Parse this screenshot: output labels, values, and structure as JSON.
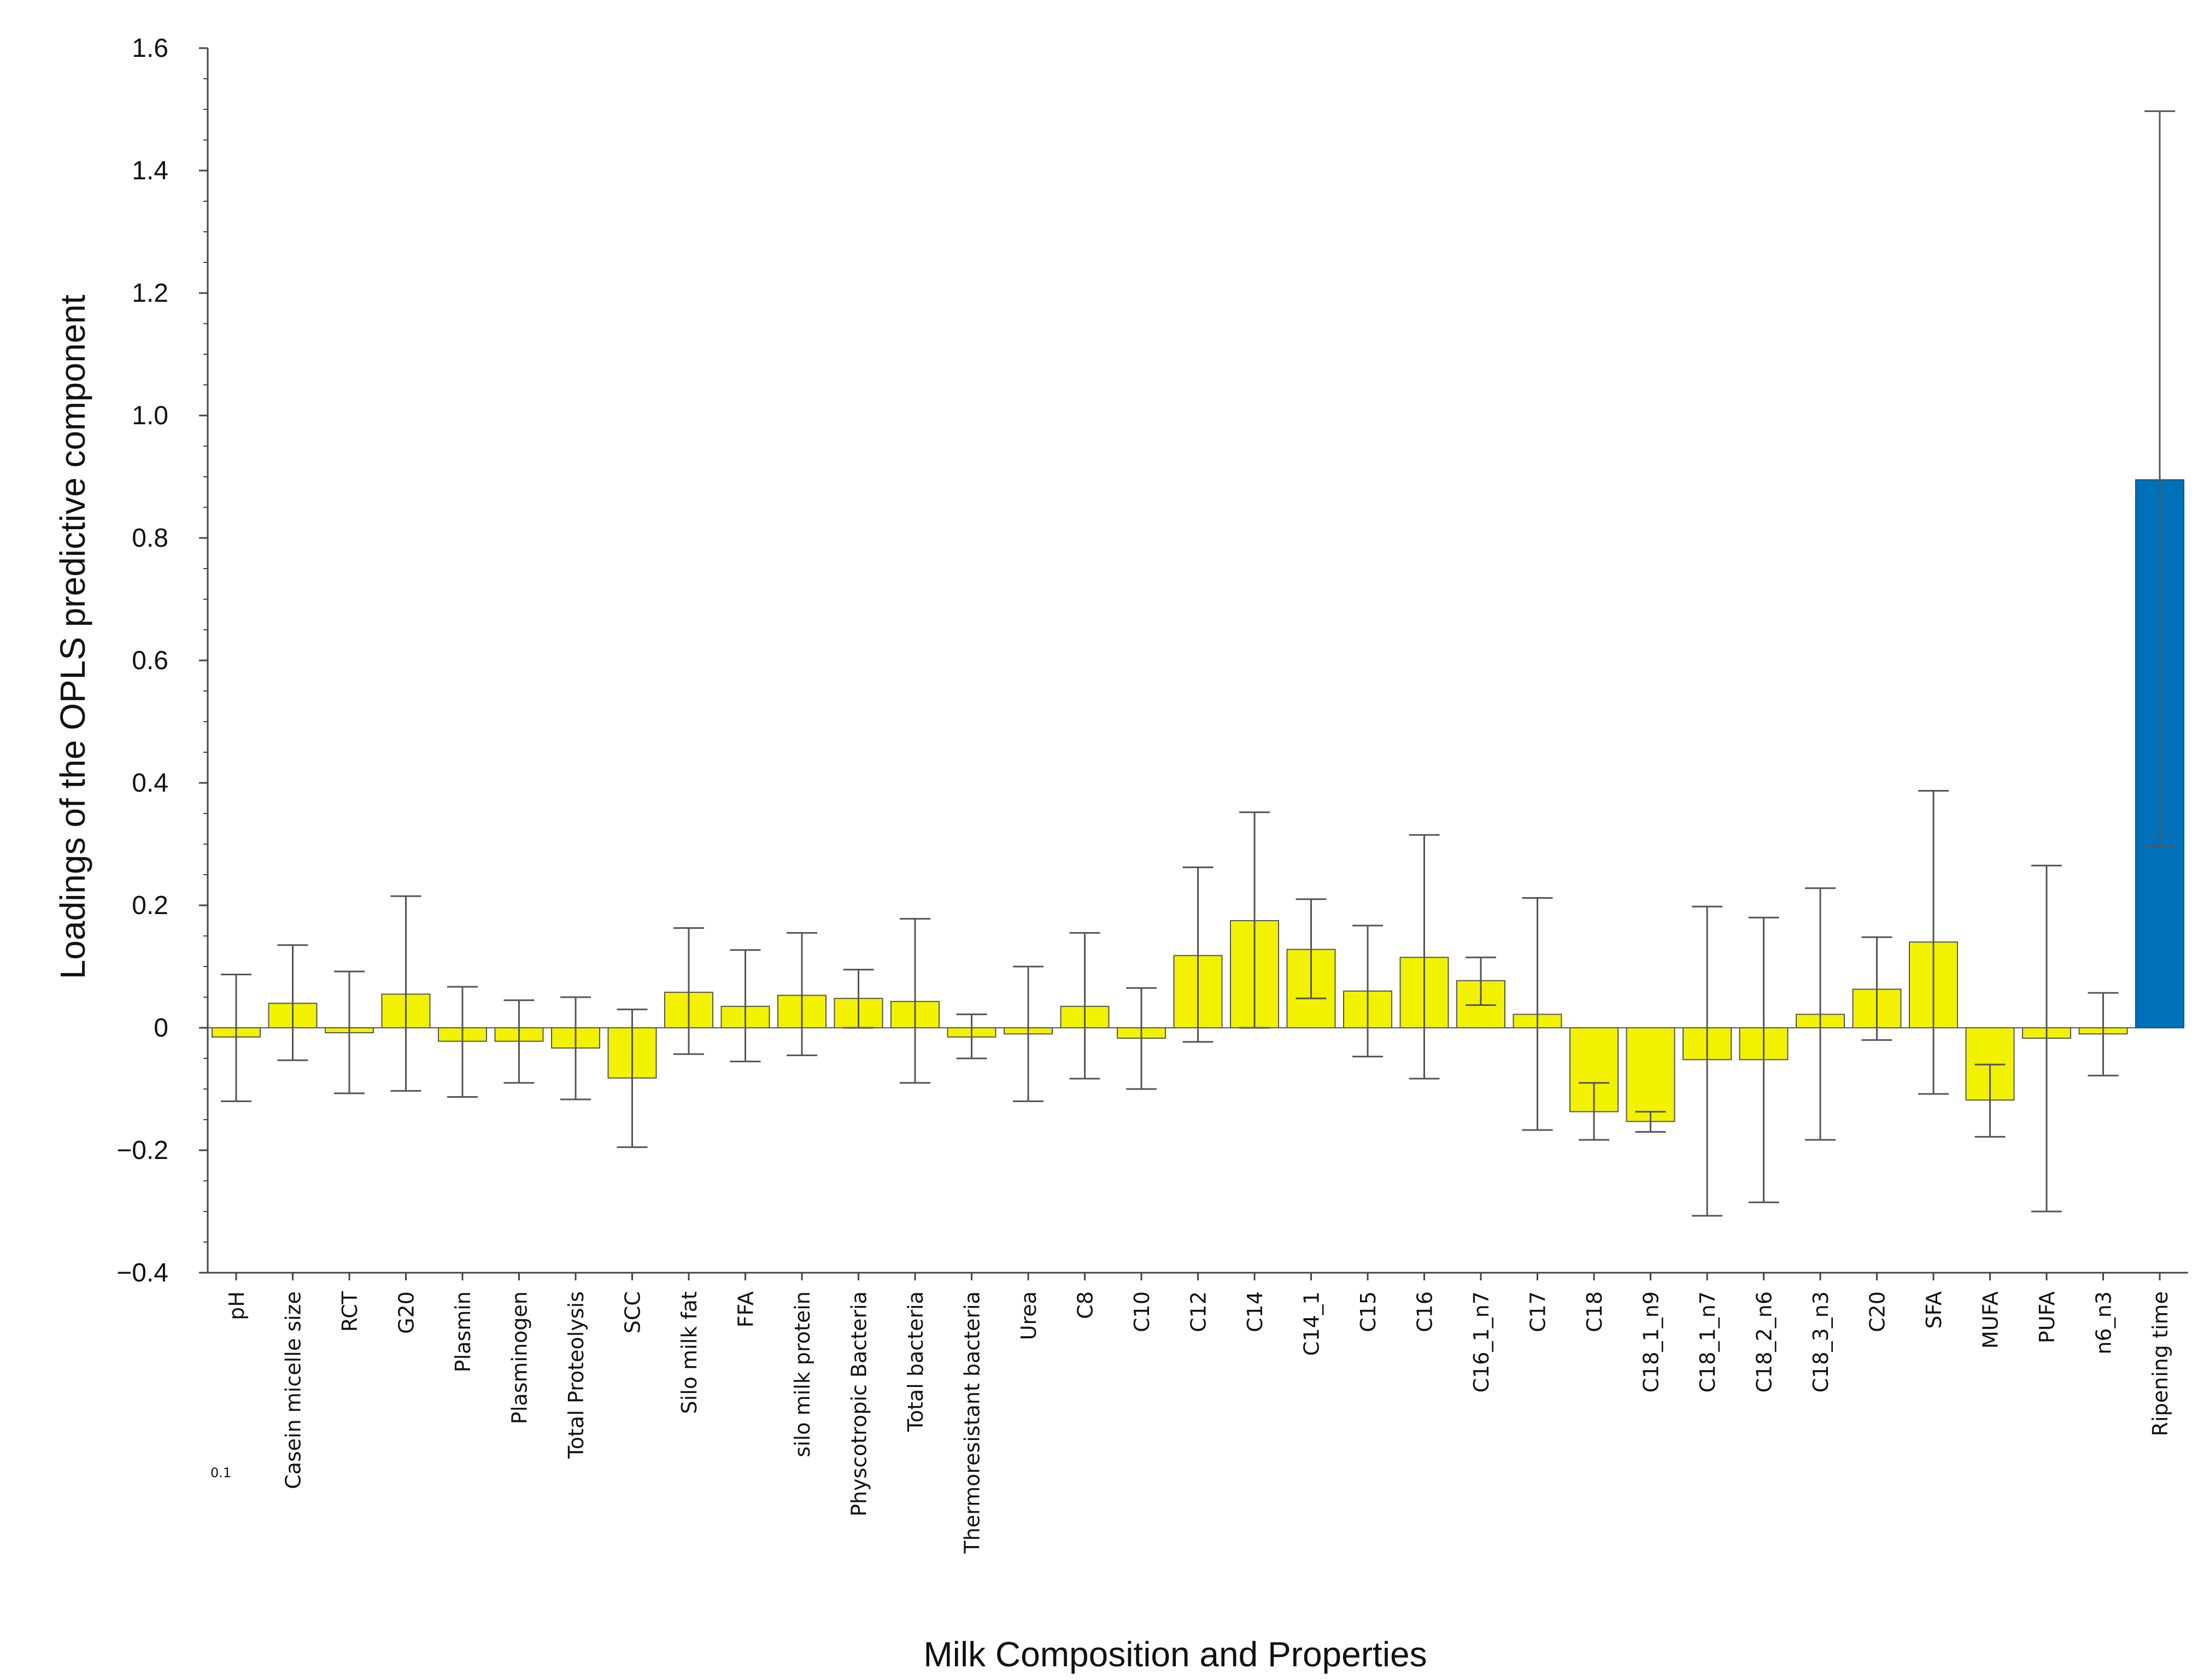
{
  "chart_data": {
    "type": "bar",
    "title": "",
    "xlabel": "Milk Composition and Properties",
    "ylabel": "Loadings of the OPLS predictive component",
    "ylim": [
      -0.4,
      1.6
    ],
    "yticks": [
      -0.4,
      -0.2,
      0,
      0.2,
      0.4,
      0.6,
      0.8,
      1.0,
      1.2,
      1.4,
      1.6
    ],
    "ytick_labels": [
      "−0.4",
      "−0.2",
      "0",
      "0.2",
      "0.4",
      "0.6",
      "0.8",
      "1.0",
      "1.2",
      "1.4",
      "1.6"
    ],
    "grid": false,
    "legend": "none",
    "stray_text": "0.1",
    "colors": {
      "default": "#f2f200",
      "highlight": "#0070b8",
      "border": "#555555",
      "errorbar": "#555555"
    },
    "categories": [
      "pH",
      "Casein micelle size",
      "RCT",
      "G20",
      "Plasmin",
      "Plasminogen",
      "Total Proteolysis",
      "SCC",
      "Silo milk fat",
      "FFA",
      "silo milk protein",
      "Physcotropic Bacteria",
      "Total bacteria",
      "Thermoresistant bacteria",
      "Urea",
      "C8",
      "C10",
      "C12",
      "C14",
      "C14_1",
      "C15",
      "C16",
      "C16_1_n7",
      "C17",
      "C18",
      "C18_1_n9",
      "C18_1_n7",
      "C18_2_n6",
      "C18_3_n3",
      "C20",
      "SFA",
      "MUFA",
      "PUFA",
      "n6_n3",
      "Ripening time"
    ],
    "values": [
      -0.015,
      0.04,
      -0.008,
      0.055,
      -0.022,
      -0.022,
      -0.033,
      -0.082,
      0.058,
      0.035,
      0.053,
      0.048,
      0.043,
      -0.015,
      -0.01,
      0.035,
      -0.017,
      0.118,
      0.175,
      0.128,
      0.06,
      0.115,
      0.077,
      0.022,
      -0.137,
      -0.153,
      -0.052,
      -0.052,
      0.022,
      0.063,
      0.14,
      -0.118,
      -0.017,
      -0.01,
      0.895
    ],
    "error_low": [
      -0.12,
      -0.053,
      -0.107,
      -0.103,
      -0.113,
      -0.09,
      -0.117,
      -0.195,
      -0.043,
      -0.055,
      -0.045,
      0.0,
      -0.09,
      -0.05,
      -0.12,
      -0.083,
      -0.1,
      -0.023,
      0.0,
      0.048,
      -0.047,
      -0.083,
      0.037,
      -0.167,
      -0.183,
      -0.17,
      -0.307,
      -0.285,
      -0.183,
      -0.02,
      -0.108,
      -0.178,
      -0.3,
      -0.078,
      0.297
    ],
    "error_high": [
      0.087,
      0.135,
      0.092,
      0.215,
      0.067,
      0.045,
      0.05,
      0.03,
      0.163,
      0.127,
      0.155,
      0.095,
      0.178,
      0.022,
      0.1,
      0.155,
      0.065,
      0.262,
      0.352,
      0.21,
      0.167,
      0.315,
      0.115,
      0.212,
      -0.09,
      -0.137,
      0.198,
      0.18,
      0.228,
      0.148,
      0.387,
      -0.06,
      0.265,
      0.057,
      1.497
    ],
    "highlight_index": 34
  }
}
